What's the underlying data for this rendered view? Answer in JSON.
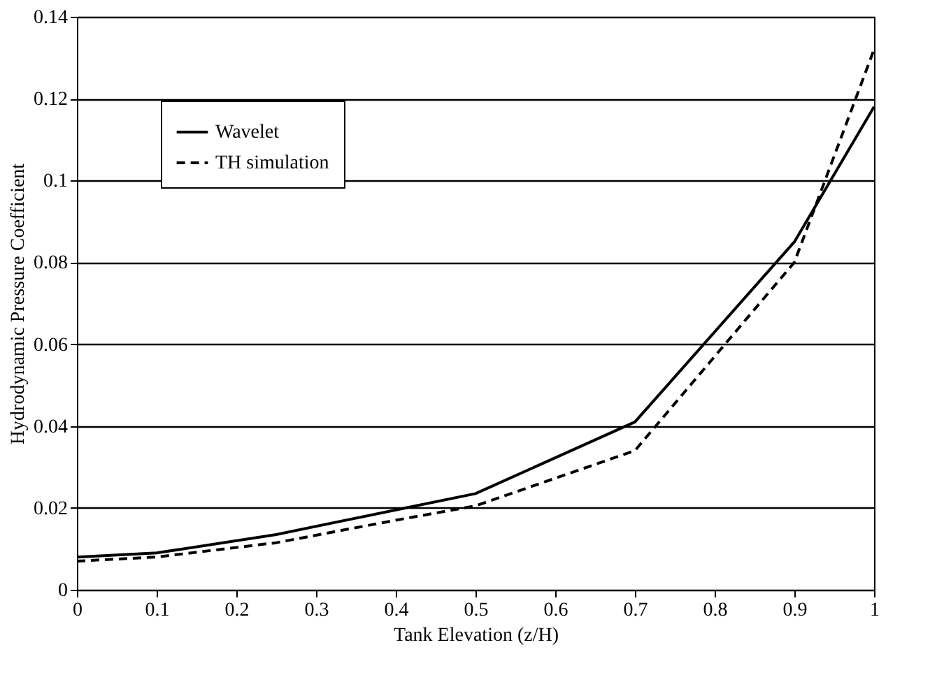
{
  "chart_data": {
    "type": "line",
    "xlabel": "Tank Elevation (z/H)",
    "ylabel": "Hydrodynamic Pressure Coefficient",
    "x": [
      0,
      0.1,
      0.25,
      0.4,
      0.5,
      0.7,
      0.9,
      1
    ],
    "series": [
      {
        "name": "Wavelet",
        "color": "#000000",
        "line_style": "solid",
        "values": [
          0.008,
          0.009,
          0.0135,
          0.0195,
          0.0235,
          0.041,
          0.085,
          0.118
        ]
      },
      {
        "name": "TH simulation",
        "color": "#000000",
        "line_style": "dashed",
        "values": [
          0.007,
          0.008,
          0.0115,
          0.017,
          0.0205,
          0.034,
          0.08,
          0.132
        ]
      }
    ],
    "xlim": [
      0,
      1
    ],
    "xticks": [
      0,
      0.1,
      0.2,
      0.3,
      0.4,
      0.5,
      0.6,
      0.7,
      0.8,
      0.9,
      1
    ],
    "ylim": [
      0,
      0.14
    ],
    "yticks": [
      0,
      0.02,
      0.04,
      0.06,
      0.08,
      0.1,
      0.12,
      0.14
    ],
    "grid": "y",
    "legend": "top left",
    "marker": "none"
  }
}
